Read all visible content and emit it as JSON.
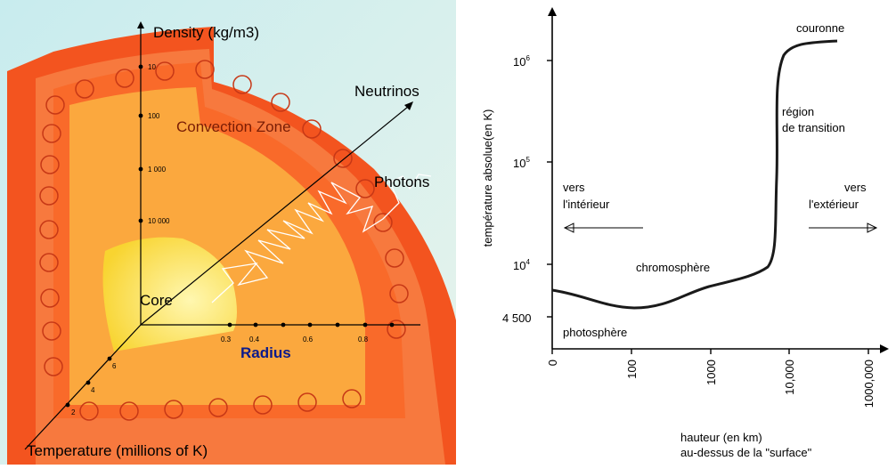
{
  "sun_diagram": {
    "density_axis_label": "Density (kg/m3)",
    "density_ticks": [
      "10",
      "100",
      "1 000",
      "10 000"
    ],
    "neutrinos_label": "Neutrinos",
    "photons_label": "Photons",
    "convection_zone_label": "Convection Zone",
    "core_label": "Core",
    "radius_label": "Radius",
    "radius_ticks": [
      "0.3",
      "0.4",
      "0.6",
      "0.8"
    ],
    "temperature_axis_label": "Temperature (millions of K)",
    "temperature_ticks": [
      "2",
      "4",
      "6"
    ],
    "colors": {
      "background": "#d6eef0",
      "outer_shell": "#f3541f",
      "convection_band": "#f88048",
      "radiative_zone": "#fbaa3a",
      "core": "#fbe24a"
    }
  },
  "temperature_profile": {
    "y_axis_label": "température absolue(en K)",
    "y_ticks": [
      {
        "base": "10",
        "exp": "6"
      },
      {
        "base": "10",
        "exp": "5"
      },
      {
        "base": "10",
        "exp": "4"
      },
      {
        "base": "4 500",
        "exp": ""
      }
    ],
    "x_ticks": [
      "0",
      "100",
      "1000",
      "10,000",
      "1000,000"
    ],
    "x_axis_label_line1": "hauteur (en km)",
    "x_axis_label_line2": "au-dessus de la \"surface\"",
    "annotations": {
      "couronne": "couronne",
      "region_line1": "région",
      "region_line2": "de transition",
      "inward_line1": "vers",
      "inward_line2": "l'intérieur",
      "outward_line1": "vers",
      "outward_line2": "l'extérieur",
      "chromosphere": "chromosphère",
      "photosphere": "photosphère"
    }
  }
}
